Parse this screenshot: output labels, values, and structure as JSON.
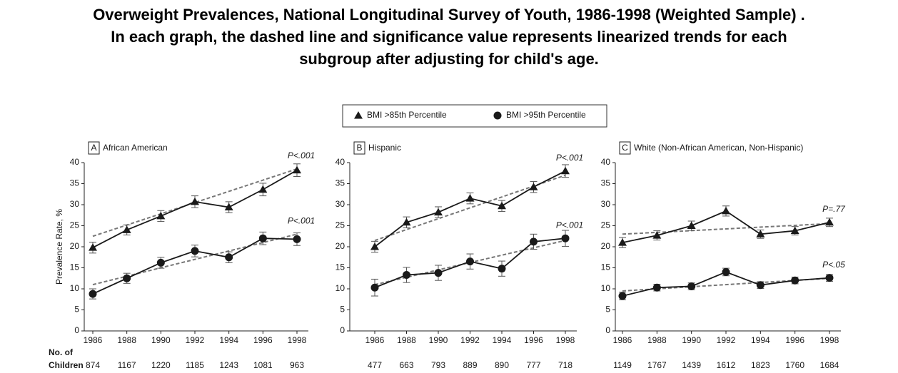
{
  "title": [
    "Overweight Prevalences, National Longitudinal Survey of Youth, 1986-1998 (Weighted Sample) .",
    "In each graph, the dashed line and significance value represents linearized trends for each",
    "subgroup after adjusting for child's age."
  ],
  "counts_label": [
    "No. of",
    "Children"
  ],
  "chart_data": [
    {
      "type": "line",
      "panel_label": "A",
      "title": "African American",
      "ylabel": "Prevalence Rate, %",
      "categories": [
        "1986",
        "1988",
        "1990",
        "1992",
        "1994",
        "1996",
        "1998"
      ],
      "counts": [
        874,
        1167,
        1220,
        1185,
        1243,
        1081,
        963
      ],
      "ylim": [
        0,
        40
      ],
      "yticks": [
        0,
        5,
        10,
        15,
        20,
        25,
        30,
        35,
        40
      ],
      "series": [
        {
          "name": "BMI >85th Percentile",
          "marker": "triangle",
          "color": "#1a1a1a",
          "values": [
            19.8,
            24,
            27.3,
            30.7,
            29.4,
            33.6,
            38.2
          ],
          "errors": [
            1.3,
            1.2,
            1.3,
            1.4,
            1.3,
            1.5,
            1.5
          ],
          "trend": [
            22.5,
            38.5
          ],
          "p_label": "P<.001"
        },
        {
          "name": "BMI >95th Percentile",
          "marker": "circle",
          "color": "#1a1a1a",
          "values": [
            8.8,
            12.5,
            16.2,
            19,
            17.5,
            22,
            21.8
          ],
          "errors": [
            1.2,
            1.2,
            1.3,
            1.4,
            1.3,
            1.5,
            1.5
          ],
          "trend": [
            11,
            23
          ],
          "p_label": "P<.001"
        }
      ]
    },
    {
      "type": "line",
      "panel_label": "B",
      "title": "Hispanic",
      "categories": [
        "1986",
        "1988",
        "1990",
        "1992",
        "1994",
        "1996",
        "1998"
      ],
      "counts": [
        477,
        663,
        793,
        889,
        890,
        777,
        718
      ],
      "ylim": [
        0,
        40
      ],
      "yticks": [
        0,
        5,
        10,
        15,
        20,
        25,
        30,
        35,
        40
      ],
      "series": [
        {
          "marker": "triangle",
          "color": "#1a1a1a",
          "values": [
            20,
            25.8,
            28.2,
            31.5,
            29.7,
            34.2,
            38
          ],
          "errors": [
            1.3,
            1.3,
            1.3,
            1.3,
            1.3,
            1.3,
            1.5
          ],
          "trend": [
            21.5,
            37
          ],
          "p_label": "P<.001"
        },
        {
          "marker": "circle",
          "color": "#1a1a1a",
          "values": [
            10.3,
            13.3,
            13.8,
            16.5,
            14.8,
            21.2,
            22
          ],
          "errors": [
            2,
            1.8,
            1.8,
            1.8,
            1.8,
            1.8,
            1.9
          ],
          "trend": [
            11,
            21.5
          ],
          "p_label": "P<.001"
        }
      ]
    },
    {
      "type": "line",
      "panel_label": "C",
      "title": "White (Non-African American, Non-Hispanic)",
      "categories": [
        "1986",
        "1988",
        "1990",
        "1992",
        "1994",
        "1996",
        "1998"
      ],
      "counts": [
        1149,
        1767,
        1439,
        1612,
        1823,
        1760,
        1684
      ],
      "ylim": [
        0,
        40
      ],
      "yticks": [
        0,
        5,
        10,
        15,
        20,
        25,
        30,
        35,
        40
      ],
      "series": [
        {
          "marker": "triangle",
          "color": "#1a1a1a",
          "values": [
            21,
            22.7,
            25,
            28.5,
            23,
            23.8,
            25.8
          ],
          "errors": [
            1.2,
            1.1,
            1.1,
            1.2,
            1.0,
            1.0,
            1.0
          ],
          "trend": [
            23,
            25.5
          ],
          "p_label": "P=.77"
        },
        {
          "marker": "circle",
          "color": "#1a1a1a",
          "values": [
            8.3,
            10.3,
            10.6,
            14,
            10.9,
            12,
            12.6
          ],
          "errors": [
            0.9,
            0.8,
            0.8,
            0.9,
            0.8,
            0.8,
            0.8
          ],
          "trend": [
            9.5,
            12.5
          ],
          "p_label": "P<.05"
        }
      ]
    }
  ]
}
